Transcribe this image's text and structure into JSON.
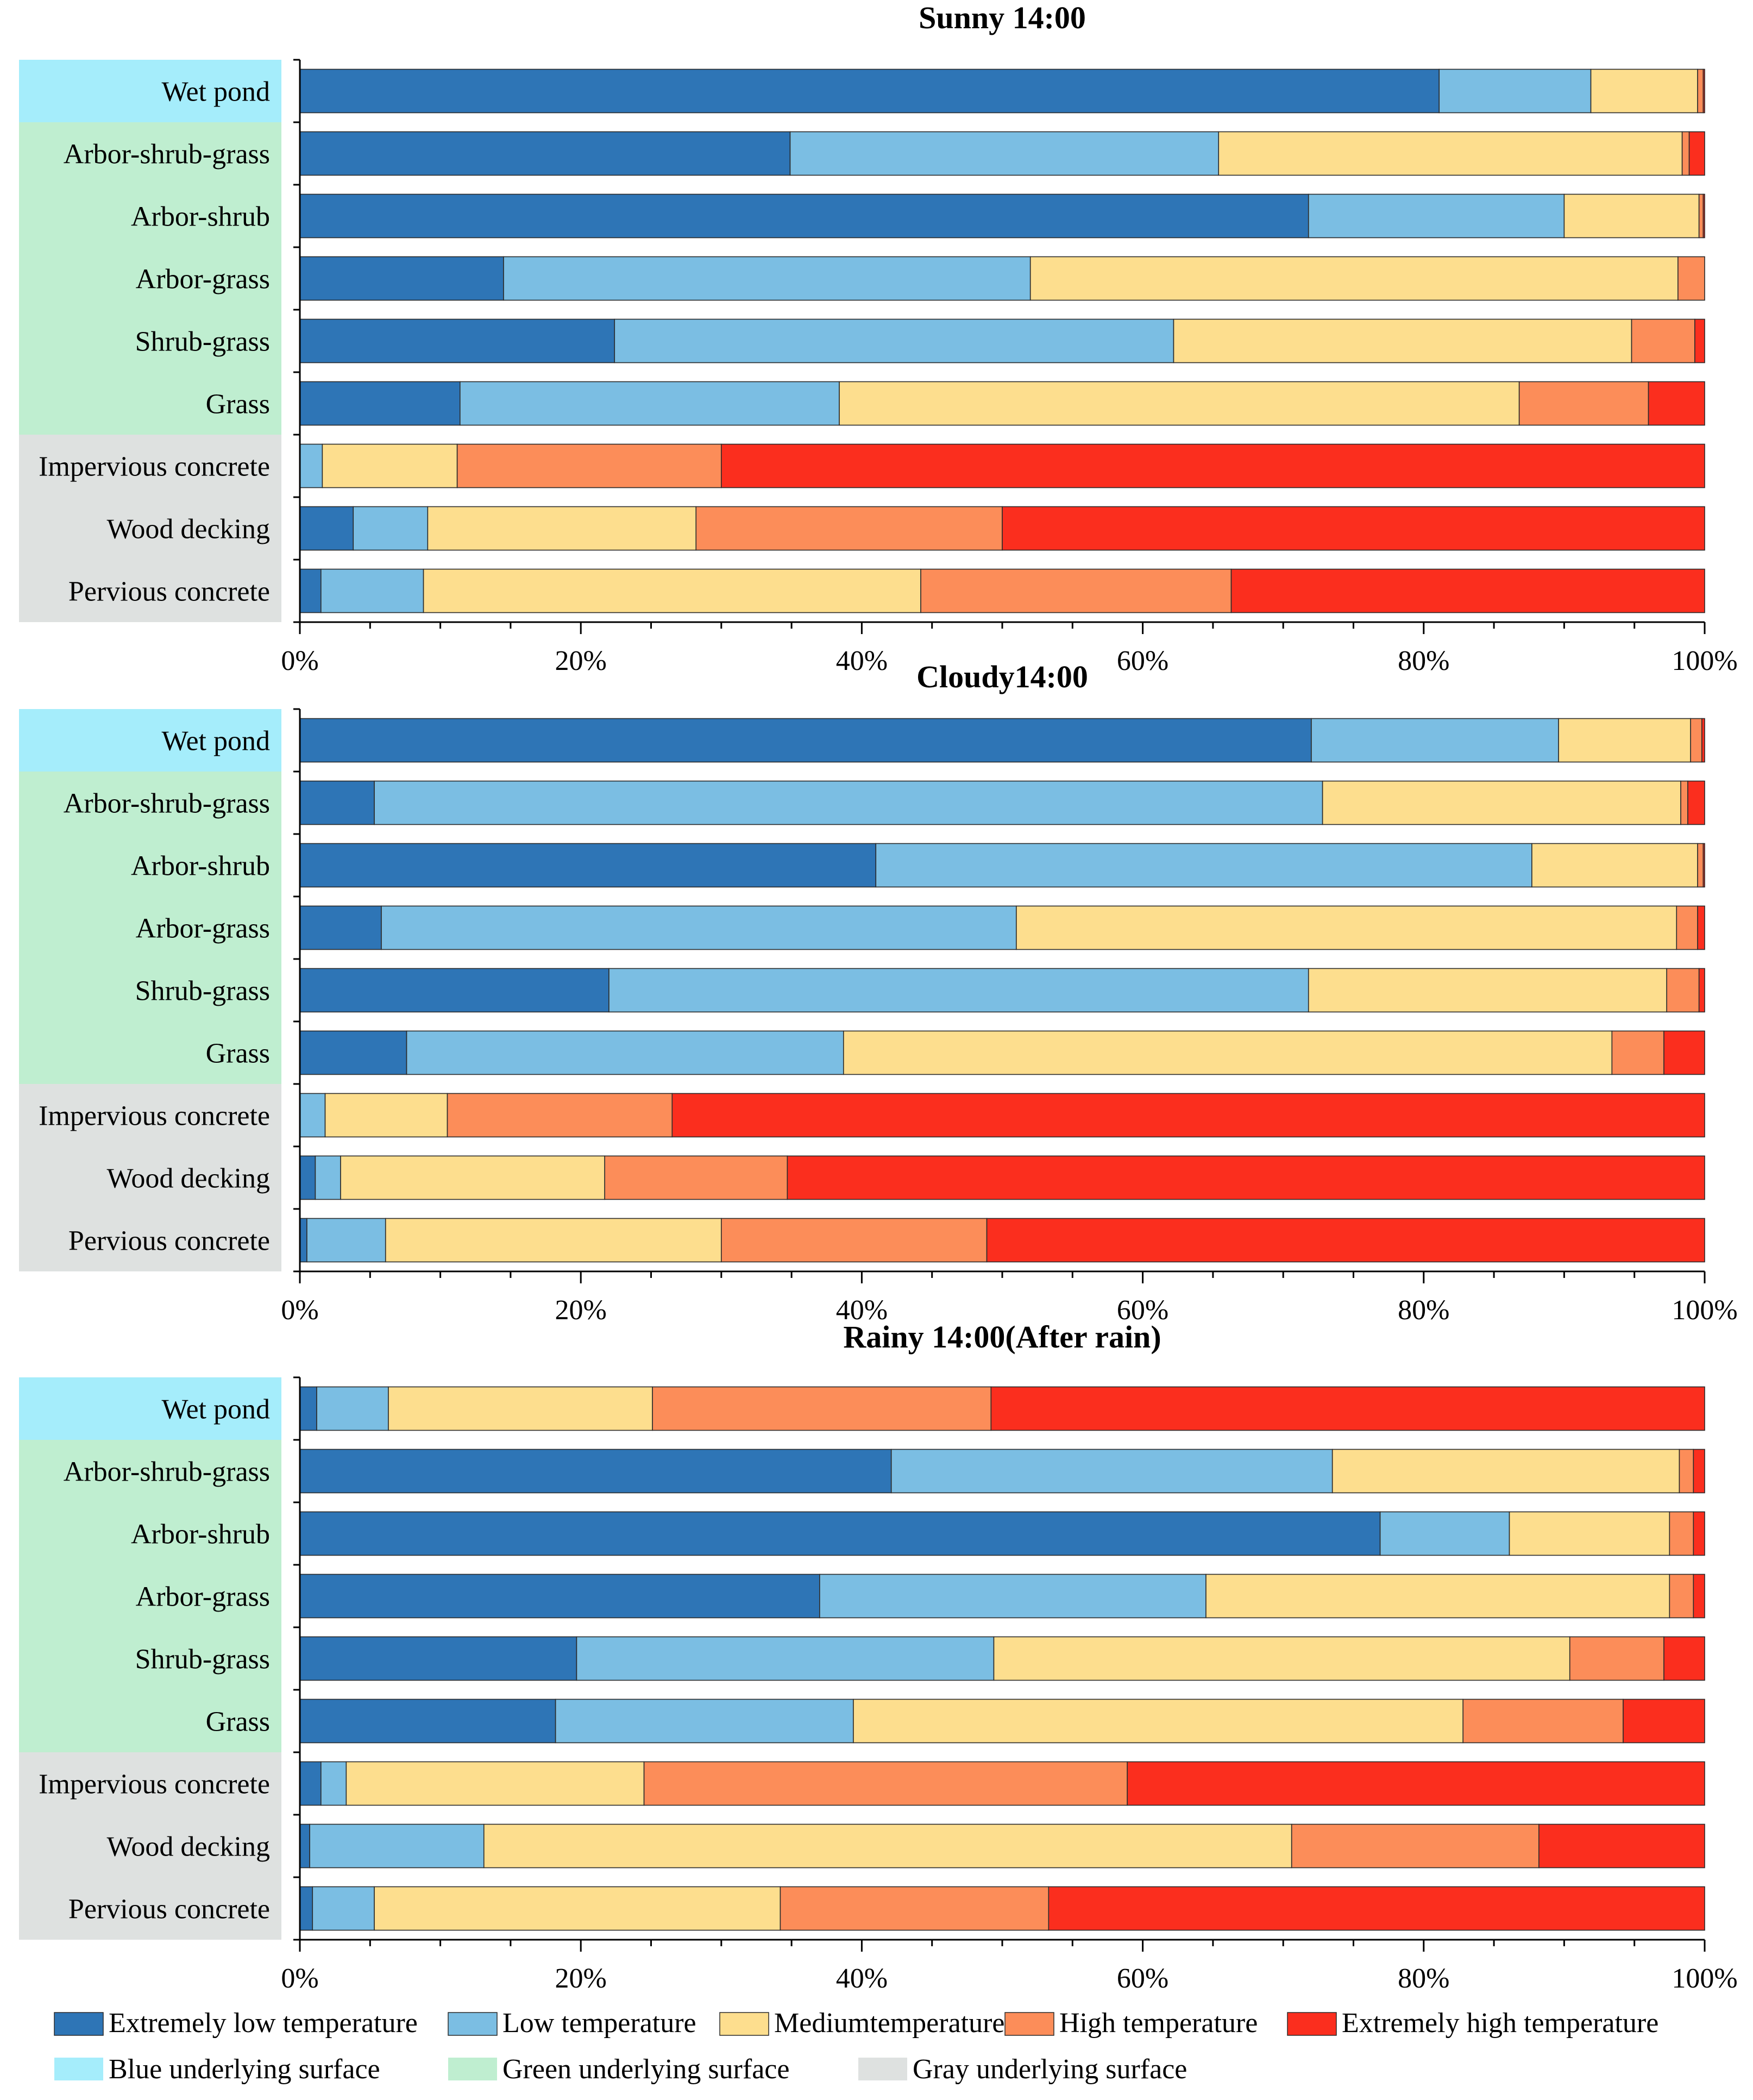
{
  "colors": {
    "extremely_low": "#2E75B6",
    "low": "#7BBEE3",
    "medium": "#FDDE8E",
    "high": "#FC8D59",
    "extremely_high": "#FB2E1E",
    "blue_surface": "#A5EDFB",
    "green_surface": "#BFEED0",
    "gray_surface": "#DEE1E0"
  },
  "legend": {
    "temperature": [
      {
        "label": "Extremely low temperature",
        "color_key": "extremely_low"
      },
      {
        "label": "Low temperature",
        "color_key": "low"
      },
      {
        "label": "Mediumtemperature",
        "color_key": "medium"
      },
      {
        "label": "High temperature",
        "color_key": "high"
      },
      {
        "label": "Extremely high temperature",
        "color_key": "extremely_high"
      }
    ],
    "surface": [
      {
        "label": "Blue underlying surface",
        "color_key": "blue_surface"
      },
      {
        "label": "Green underlying surface",
        "color_key": "green_surface"
      },
      {
        "label": "Gray underlying surface",
        "color_key": "gray_surface"
      }
    ]
  },
  "chart_data": [
    {
      "type": "bar",
      "orientation": "horizontal-stacked",
      "title": "Sunny 14:00",
      "categories": [
        "Wet pond",
        "Arbor-shrub-grass",
        "Arbor-shrub",
        "Arbor-grass",
        "Shrub-grass",
        "Grass",
        "Impervious concrete",
        "Wood decking",
        "Pervious concrete"
      ],
      "surface_groups": [
        "blue_surface",
        "green_surface",
        "green_surface",
        "green_surface",
        "green_surface",
        "green_surface",
        "gray_surface",
        "gray_surface",
        "gray_surface"
      ],
      "xlim": [
        0,
        100
      ],
      "x_ticks": [
        "0%",
        "20%",
        "40%",
        "60%",
        "80%",
        "100%"
      ],
      "series": [
        {
          "name": "Extremely low temperature",
          "values": [
            81.1,
            34.9,
            71.8,
            14.5,
            22.4,
            11.4,
            0.0,
            3.8,
            1.5
          ]
        },
        {
          "name": "Low temperature",
          "values": [
            10.8,
            30.5,
            18.2,
            37.5,
            39.8,
            27.0,
            1.6,
            5.3,
            7.3
          ]
        },
        {
          "name": "Mediumtemperature",
          "values": [
            7.6,
            33.0,
            9.6,
            46.1,
            32.6,
            48.4,
            9.6,
            19.1,
            35.4
          ]
        },
        {
          "name": "High temperature",
          "values": [
            0.4,
            0.5,
            0.3,
            1.9,
            4.5,
            9.2,
            18.8,
            21.8,
            22.1
          ]
        },
        {
          "name": "Extremely high temperature",
          "values": [
            0.1,
            1.1,
            0.1,
            0.0,
            0.7,
            4.0,
            70.0,
            50.0,
            33.7
          ]
        }
      ]
    },
    {
      "type": "bar",
      "orientation": "horizontal-stacked",
      "title": "Cloudy14:00",
      "categories": [
        "Wet pond",
        "Arbor-shrub-grass",
        "Arbor-shrub",
        "Arbor-grass",
        "Shrub-grass",
        "Grass",
        "Impervious concrete",
        "Wood decking",
        "Pervious concrete"
      ],
      "surface_groups": [
        "blue_surface",
        "green_surface",
        "green_surface",
        "green_surface",
        "green_surface",
        "green_surface",
        "gray_surface",
        "gray_surface",
        "gray_surface"
      ],
      "xlim": [
        0,
        100
      ],
      "x_ticks": [
        "0%",
        "20%",
        "40%",
        "60%",
        "80%",
        "100%"
      ],
      "series": [
        {
          "name": "Extremely low temperature",
          "values": [
            72.0,
            5.3,
            41.0,
            5.8,
            22.0,
            7.6,
            0.0,
            1.1,
            0.5
          ]
        },
        {
          "name": "Low temperature",
          "values": [
            17.6,
            67.5,
            46.7,
            45.2,
            49.8,
            31.1,
            1.8,
            1.8,
            5.6
          ]
        },
        {
          "name": "Mediumtemperature",
          "values": [
            9.4,
            25.5,
            11.8,
            47.0,
            25.5,
            54.7,
            8.7,
            18.8,
            23.9
          ]
        },
        {
          "name": "High temperature",
          "values": [
            0.8,
            0.5,
            0.4,
            1.5,
            2.3,
            3.7,
            16.0,
            13.0,
            18.9
          ]
        },
        {
          "name": "Extremely high temperature",
          "values": [
            0.2,
            1.2,
            0.1,
            0.5,
            0.4,
            2.9,
            73.5,
            65.3,
            51.1
          ]
        }
      ]
    },
    {
      "type": "bar",
      "orientation": "horizontal-stacked",
      "title": "Rainy 14:00(After rain)",
      "categories": [
        "Wet pond",
        "Arbor-shrub-grass",
        "Arbor-shrub",
        "Arbor-grass",
        "Shrub-grass",
        "Grass",
        "Impervious concrete",
        "Wood decking",
        "Pervious concrete"
      ],
      "surface_groups": [
        "blue_surface",
        "green_surface",
        "green_surface",
        "green_surface",
        "green_surface",
        "green_surface",
        "gray_surface",
        "gray_surface",
        "gray_surface"
      ],
      "xlim": [
        0,
        100
      ],
      "x_ticks": [
        "0%",
        "20%",
        "40%",
        "60%",
        "80%",
        "100%"
      ],
      "series": [
        {
          "name": "Extremely low temperature",
          "values": [
            1.2,
            42.1,
            76.9,
            37.0,
            19.7,
            18.2,
            1.5,
            0.7,
            0.9
          ]
        },
        {
          "name": "Low temperature",
          "values": [
            5.1,
            31.4,
            9.2,
            27.5,
            29.7,
            21.2,
            1.8,
            12.4,
            4.4
          ]
        },
        {
          "name": "Mediumtemperature",
          "values": [
            18.8,
            24.7,
            11.4,
            33.0,
            41.0,
            43.4,
            21.2,
            57.5,
            28.9
          ]
        },
        {
          "name": "High temperature",
          "values": [
            24.1,
            1.0,
            1.7,
            1.7,
            6.7,
            11.4,
            34.4,
            17.6,
            19.1
          ]
        },
        {
          "name": "Extremely high temperature",
          "values": [
            50.8,
            0.8,
            0.8,
            0.8,
            2.9,
            5.8,
            41.1,
            11.8,
            46.7
          ]
        }
      ]
    }
  ]
}
